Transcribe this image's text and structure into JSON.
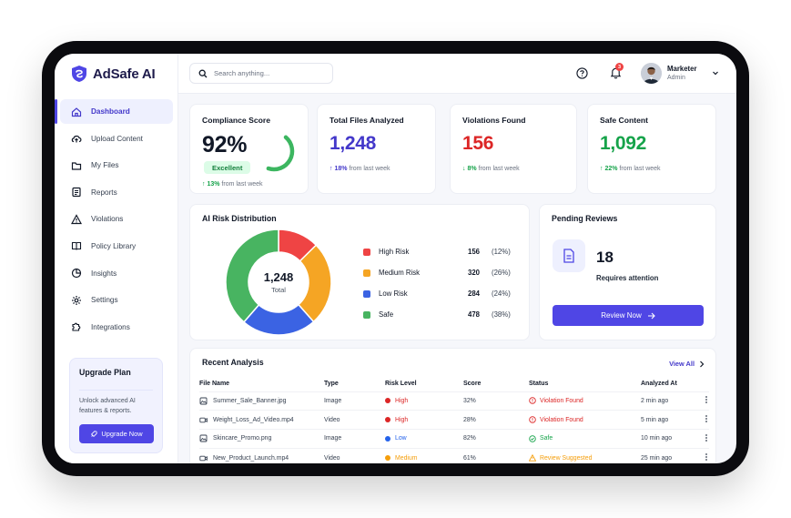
{
  "brand": {
    "name": "AdSafe AI"
  },
  "sidebar": {
    "items": [
      {
        "label": "Dashboard",
        "icon": "home-icon",
        "active": true
      },
      {
        "label": "Upload Content",
        "icon": "upload-cloud-icon"
      },
      {
        "label": "My Files",
        "icon": "folder-icon"
      },
      {
        "label": "Reports",
        "icon": "report-icon"
      },
      {
        "label": "Violations",
        "icon": "warning-icon"
      },
      {
        "label": "Policy Library",
        "icon": "book-icon"
      },
      {
        "label": "Insights",
        "icon": "pie-icon"
      },
      {
        "label": "Settings",
        "icon": "gear-icon"
      },
      {
        "label": "Integrations",
        "icon": "puzzle-icon"
      }
    ],
    "upgrade": {
      "title": "Upgrade Plan",
      "text": "Unlock advanced AI features & reports.",
      "button": "Upgrade Now"
    }
  },
  "topbar": {
    "search_placeholder": "Search anything...",
    "notification_count": "3",
    "user": {
      "name": "Marketer",
      "role": "Admin"
    }
  },
  "kpis": {
    "compliance": {
      "title": "Compliance Score",
      "value": "92%",
      "badge": "Excellent",
      "trend_value": "↑ 13%",
      "trend_text": "from last week",
      "progress": 0.92
    },
    "files": {
      "title": "Total Files Analyzed",
      "value": "1,248",
      "trend_value": "↑ 18%",
      "trend_text": "from last week",
      "color": "#4338ca"
    },
    "violations": {
      "title": "Violations Found",
      "value": "156",
      "trend_value": "↓ 8%",
      "trend_text": "from last week",
      "color": "#dc2626"
    },
    "safe": {
      "title": "Safe Content",
      "value": "1,092",
      "trend_value": "↑ 22%",
      "trend_text": "from last week",
      "color": "#16a34a"
    }
  },
  "risk": {
    "title": "AI Risk Distribution",
    "center_value": "1,248",
    "center_label": "Total",
    "legend": [
      {
        "label": "High Risk",
        "count": "156",
        "pct": "(12%)"
      },
      {
        "label": "Medium Risk",
        "count": "320",
        "pct": "(26%)"
      },
      {
        "label": "Low Risk",
        "count": "284",
        "pct": "(24%)"
      },
      {
        "label": "Safe",
        "count": "478",
        "pct": "(38%)"
      }
    ]
  },
  "chart_data": {
    "type": "pie",
    "title": "AI Risk Distribution",
    "categories": [
      "High Risk",
      "Medium Risk",
      "Low Risk",
      "Safe"
    ],
    "values": [
      156,
      320,
      284,
      478
    ],
    "colors": [
      "#ef4444",
      "#f5a524",
      "#3b63e3",
      "#48b461"
    ]
  },
  "pending": {
    "title": "Pending Reviews",
    "count": "18",
    "text": "Requires attention",
    "button": "Review Now"
  },
  "recent": {
    "title": "Recent Analysis",
    "view_all": "View All",
    "columns": [
      "File Name",
      "Type",
      "Risk Level",
      "Score",
      "Status",
      "Analyzed At"
    ],
    "rows": [
      {
        "file": "Summer_Sale_Banner.jpg",
        "type": "Image",
        "risk": "High",
        "risk_color": "#dc2626",
        "score": "32%",
        "status": "Violation Found",
        "status_color": "#dc2626",
        "status_icon": "alert-circle-icon",
        "time": "2 min ago",
        "file_icon": "image-file-icon"
      },
      {
        "file": "Weight_Loss_Ad_Video.mp4",
        "type": "Video",
        "risk": "High",
        "risk_color": "#dc2626",
        "score": "28%",
        "status": "Violation Found",
        "status_color": "#dc2626",
        "status_icon": "alert-circle-icon",
        "time": "5 min ago",
        "file_icon": "video-file-icon"
      },
      {
        "file": "Skincare_Promo.png",
        "type": "Image",
        "risk": "Low",
        "risk_color": "#2563eb",
        "score": "82%",
        "status": "Safe",
        "status_color": "#16a34a",
        "status_icon": "check-circle-icon",
        "time": "10 min ago",
        "file_icon": "image-file-icon"
      },
      {
        "file": "New_Product_Launch.mp4",
        "type": "Video",
        "risk": "Medium",
        "risk_color": "#f59e0b",
        "score": "61%",
        "status": "Review Suggested",
        "status_color": "#f59e0b",
        "status_icon": "warning-icon",
        "time": "25 min ago",
        "file_icon": "video-file-icon"
      }
    ]
  }
}
